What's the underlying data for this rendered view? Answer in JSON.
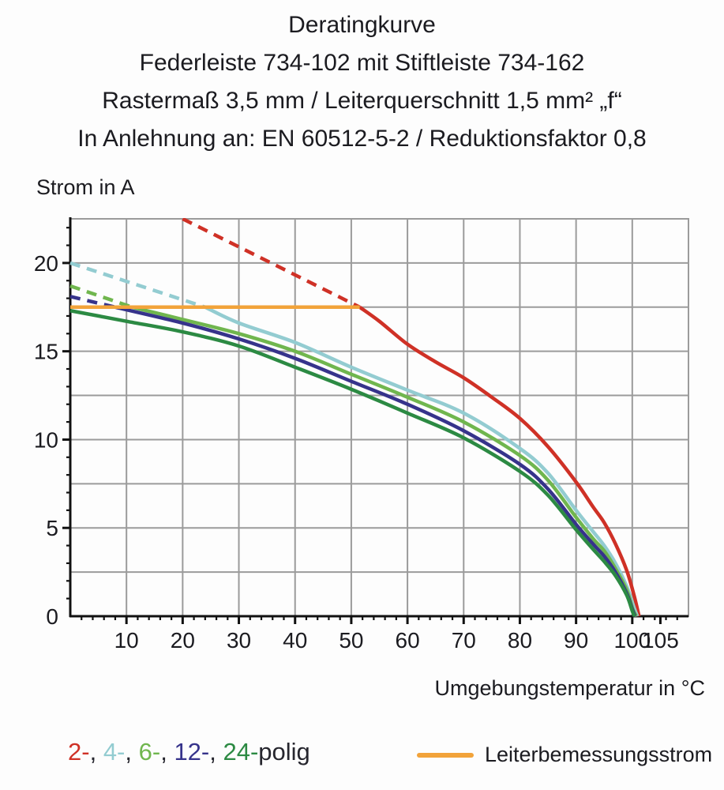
{
  "title": {
    "line1": "Deratingkurve",
    "line2": "Federleiste 734-102 mit Stiftleiste 734-162",
    "line3": "Rastermaß 3,5 mm / Leiterquerschnitt 1,5 mm² „f“",
    "line4": "In Anlehnung an: EN 60512-5-2 / Reduktionsfaktor 0,8"
  },
  "colors": {
    "text": "#1b1b20",
    "grid": "#9b9b9b",
    "axis": "#111111",
    "red_2polig": "#cf3126",
    "cyan_4polig": "#93ccd1",
    "lightgreen_6polig": "#70b64e",
    "navy_12polig": "#36338b",
    "darkgreen_24polig": "#2c8a43",
    "orange_rated": "#f2a33a"
  },
  "legend": {
    "separator": ", ",
    "suffix": "polig",
    "items": [
      {
        "label": "2-",
        "color": "#cf3126"
      },
      {
        "label": "4-",
        "color": "#93ccd1"
      },
      {
        "label": "6-",
        "color": "#70b64e"
      },
      {
        "label": "12-",
        "color": "#36338b"
      },
      {
        "label": "24-",
        "color": "#2c8a43"
      }
    ],
    "rated": {
      "label": "Leiterbemessungsstrom",
      "color": "#f2a33a"
    }
  },
  "chart_data": {
    "type": "line",
    "title": "Deratingkurve",
    "xlabel": "Umgebungstemperatur in °C",
    "ylabel": "Strom in A",
    "xlim": [
      0,
      110
    ],
    "ylim": [
      0,
      22.5
    ],
    "grid": {
      "x_step": 10,
      "y_step": 2.5,
      "on": true
    },
    "x_major_ticks": [
      10,
      20,
      30,
      40,
      50,
      60,
      70,
      80,
      90,
      100,
      105
    ],
    "x_minor_step": 2,
    "y_major_ticks": [
      0,
      5,
      10,
      15,
      20
    ],
    "y_minor_step": 1,
    "rated_current_A": 17.5,
    "series": [
      {
        "name": "2-polig",
        "color": "#cf3126",
        "dashed_points": [
          [
            20,
            22.5
          ],
          [
            51.5,
            17.5
          ]
        ],
        "points": [
          [
            51.5,
            17.5
          ],
          [
            55,
            16.7
          ],
          [
            60,
            15.4
          ],
          [
            65,
            14.4
          ],
          [
            70,
            13.5
          ],
          [
            75,
            12.4
          ],
          [
            80,
            11.2
          ],
          [
            85,
            9.6
          ],
          [
            90,
            7.6
          ],
          [
            93,
            6.2
          ],
          [
            95,
            5.3
          ],
          [
            97,
            4.1
          ],
          [
            99,
            2.6
          ],
          [
            100.3,
            1.2
          ],
          [
            101.2,
            0
          ]
        ]
      },
      {
        "name": "4-polig",
        "color": "#93ccd1",
        "dashed_points": [
          [
            0,
            20.0
          ],
          [
            24,
            17.5
          ]
        ],
        "points": [
          [
            24,
            17.5
          ],
          [
            30,
            16.6
          ],
          [
            40,
            15.5
          ],
          [
            50,
            14.1
          ],
          [
            60,
            12.8
          ],
          [
            70,
            11.5
          ],
          [
            80,
            9.5
          ],
          [
            85,
            8.1
          ],
          [
            90,
            6.0
          ],
          [
            93,
            4.8
          ],
          [
            95,
            4.0
          ],
          [
            97,
            3.0
          ],
          [
            99,
            1.7
          ],
          [
            100.3,
            0.5
          ],
          [
            100.9,
            0
          ]
        ]
      },
      {
        "name": "6-polig",
        "color": "#70b64e",
        "dashed_points": [
          [
            0,
            18.7
          ],
          [
            11,
            17.5
          ]
        ],
        "points": [
          [
            11,
            17.5
          ],
          [
            20,
            16.8
          ],
          [
            30,
            16.0
          ],
          [
            40,
            15.0
          ],
          [
            50,
            13.7
          ],
          [
            60,
            12.4
          ],
          [
            70,
            11.0
          ],
          [
            80,
            9.1
          ],
          [
            85,
            7.7
          ],
          [
            90,
            5.6
          ],
          [
            93,
            4.4
          ],
          [
            95,
            3.7
          ],
          [
            97,
            2.7
          ],
          [
            99,
            1.5
          ],
          [
            100.1,
            0.4
          ],
          [
            100.7,
            0
          ]
        ]
      },
      {
        "name": "12-polig",
        "color": "#36338b",
        "dashed_points": [
          [
            0,
            18.1
          ],
          [
            8,
            17.5
          ]
        ],
        "points": [
          [
            8,
            17.5
          ],
          [
            20,
            16.6
          ],
          [
            30,
            15.7
          ],
          [
            40,
            14.6
          ],
          [
            50,
            13.3
          ],
          [
            60,
            12.0
          ],
          [
            70,
            10.5
          ],
          [
            80,
            8.6
          ],
          [
            85,
            7.2
          ],
          [
            90,
            5.2
          ],
          [
            93,
            4.1
          ],
          [
            95,
            3.4
          ],
          [
            97,
            2.5
          ],
          [
            99,
            1.3
          ],
          [
            100,
            0.4
          ],
          [
            100.5,
            0
          ]
        ]
      },
      {
        "name": "24-polig",
        "color": "#2c8a43",
        "dashed_points": null,
        "points": [
          [
            0,
            17.3
          ],
          [
            10,
            16.7
          ],
          [
            20,
            16.1
          ],
          [
            30,
            15.3
          ],
          [
            40,
            14.1
          ],
          [
            50,
            12.85
          ],
          [
            60,
            11.5
          ],
          [
            70,
            10.1
          ],
          [
            80,
            8.2
          ],
          [
            85,
            6.85
          ],
          [
            90,
            4.9
          ],
          [
            93,
            3.8
          ],
          [
            95,
            3.1
          ],
          [
            97,
            2.3
          ],
          [
            99,
            1.2
          ],
          [
            100,
            0.3
          ],
          [
            100.4,
            0
          ]
        ]
      },
      {
        "name": "Leiterbemessungsstrom",
        "color": "#f2a33a",
        "dashed_points": null,
        "points": [
          [
            0,
            17.5
          ],
          [
            51.5,
            17.5
          ]
        ]
      }
    ]
  }
}
